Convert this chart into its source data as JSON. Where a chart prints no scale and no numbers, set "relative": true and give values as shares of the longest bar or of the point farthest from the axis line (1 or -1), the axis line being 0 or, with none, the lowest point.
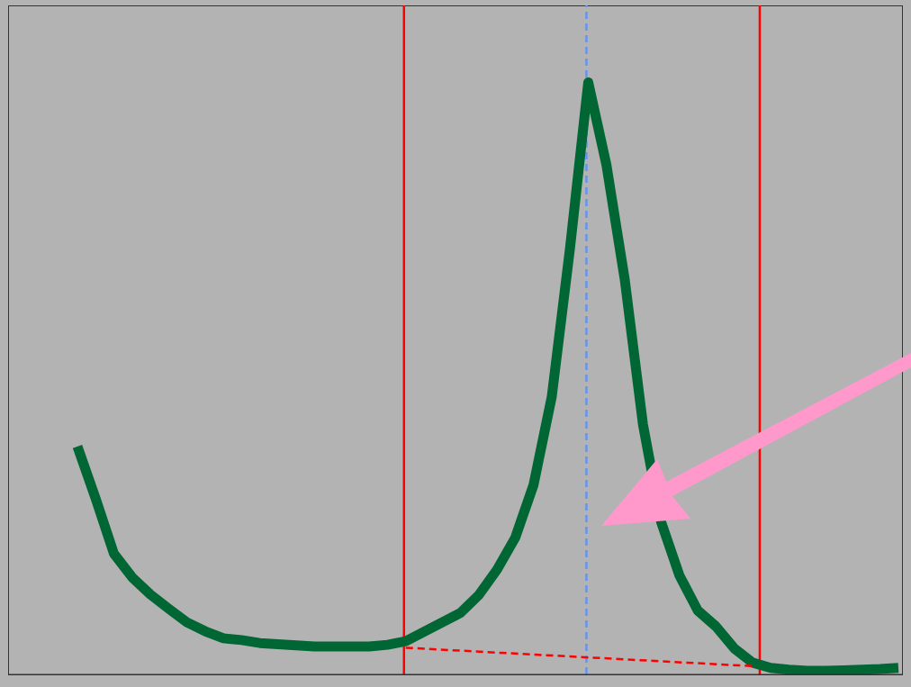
{
  "chart_data": {
    "type": "line",
    "relative": true,
    "tick_labels": false,
    "line_style": "solid",
    "categories": [
      null,
      null,
      null,
      null,
      null,
      null,
      null,
      null,
      null,
      null,
      null,
      null,
      null,
      null,
      null,
      null,
      null,
      null,
      null,
      null,
      null,
      null,
      null,
      null,
      null,
      null,
      null,
      null,
      null,
      null,
      null,
      null,
      null,
      null,
      null,
      null,
      null,
      null,
      null,
      null,
      null,
      null,
      null,
      null,
      null,
      null
    ],
    "series": [
      {
        "color": "#006633",
        "values": [
          0.385,
          0.297,
          0.204,
          0.164,
          0.135,
          0.111,
          0.088,
          0.073,
          0.061,
          0.058,
          0.053,
          0.051,
          0.049,
          0.047,
          0.047,
          0.047,
          0.047,
          0.05,
          0.056,
          0.072,
          0.088,
          0.104,
          0.134,
          0.177,
          0.231,
          0.32,
          0.469,
          0.72,
          1.0,
          0.86,
          0.667,
          0.422,
          0.257,
          0.167,
          0.108,
          0.081,
          0.044,
          0.02,
          0.011,
          0.008,
          0.006,
          0.006,
          0.007,
          0.008,
          0.009,
          0.011
        ]
      },
      {
        "color": "#ff0000",
        "line_style": "dashed",
        "values": [
          null,
          null,
          null,
          null,
          null,
          null,
          null,
          null,
          null,
          null,
          null,
          null,
          null,
          null,
          null,
          null,
          null,
          null,
          0.045,
          null,
          null,
          null,
          null,
          null,
          null,
          null,
          null,
          null,
          null,
          null,
          null,
          null,
          null,
          null,
          null,
          null,
          null,
          0.014,
          null,
          null,
          null,
          null,
          null,
          null,
          null,
          null
        ]
      }
    ]
  }
}
